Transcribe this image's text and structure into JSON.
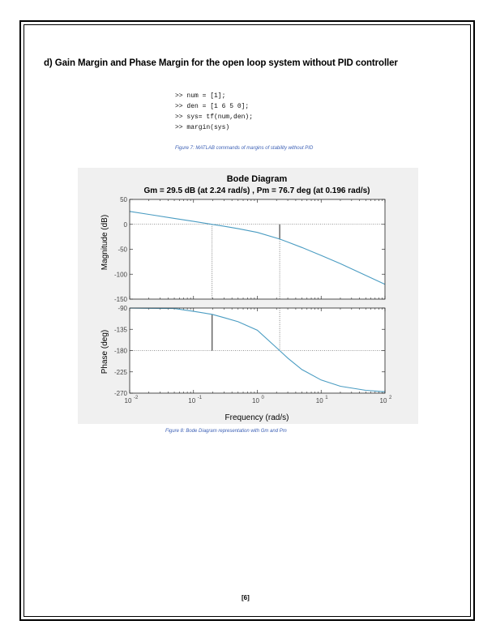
{
  "heading": "d) Gain Margin and Phase Margin for the open loop system without PID controller",
  "code_lines": [
    ">> num = [1];",
    ">> den = [1 6 5 0];",
    ">> sys= tf(num,den);",
    ">> margin(sys)"
  ],
  "figure7_caption": "Figure 7: MATLAB commands of margins of stability without PID",
  "figure8_caption": "Figure 8: Bode Diagram representation with Gm and Pm",
  "page_number": "[6]",
  "chart_data": {
    "type": "line",
    "title": "Bode Diagram",
    "subtitle": "Gm = 29.5 dB (at 2.24 rad/s) ,  Pm = 76.7 deg (at 0.196 rad/s)",
    "xlabel": "Frequency  (rad/s)",
    "x_scale": "log",
    "xlim": [
      0.01,
      100
    ],
    "x_ticks": [
      0.01,
      0.1,
      1,
      10,
      100
    ],
    "x_tick_labels": [
      {
        "base": "10",
        "exp": "-2"
      },
      {
        "base": "10",
        "exp": "-1"
      },
      {
        "base": "10",
        "exp": "0"
      },
      {
        "base": "10",
        "exp": "1"
      },
      {
        "base": "10",
        "exp": "2"
      }
    ],
    "grid": false,
    "line_color": "#4a9cc2",
    "magnitude": {
      "ylabel": "Magnitude (dB)",
      "ylim": [
        -150,
        50
      ],
      "y_ticks": [
        50,
        0,
        -50,
        -100,
        -150
      ],
      "y_tick_labels": [
        "50",
        "0",
        "-50",
        "-100",
        "-150"
      ],
      "x": [
        0.01,
        0.02,
        0.05,
        0.1,
        0.196,
        0.3,
        0.5,
        1,
        2.24,
        3,
        5,
        10,
        20,
        50,
        100
      ],
      "y": [
        26.0,
        19.9,
        11.9,
        5.9,
        -0.1,
        -3.9,
        -8.7,
        -16.1,
        -29.5,
        -35.5,
        -46.5,
        -62.4,
        -79.0,
        -102.5,
        -120.4
      ]
    },
    "phase": {
      "ylabel": "Phase (deg)",
      "ylim": [
        -270,
        -90
      ],
      "y_ticks": [
        -90,
        -135,
        -180,
        -225,
        -270
      ],
      "y_tick_labels": [
        "-90",
        "-135",
        "-180",
        "-225",
        "-270"
      ],
      "x": [
        0.01,
        0.02,
        0.05,
        0.1,
        0.196,
        0.3,
        0.5,
        1,
        2.24,
        3,
        5,
        10,
        20,
        50,
        100
      ],
      "y": [
        -90.1,
        -90.5,
        -91.0,
        -97.1,
        -103.3,
        -110.2,
        -119.0,
        -137.0,
        -180.0,
        -195.9,
        -220.1,
        -242.2,
        -255.5,
        -264.0,
        -267.0
      ]
    },
    "gain_margin": {
      "db": 29.5,
      "freq": 2.24
    },
    "phase_margin": {
      "deg": 76.7,
      "freq": 0.196
    }
  }
}
